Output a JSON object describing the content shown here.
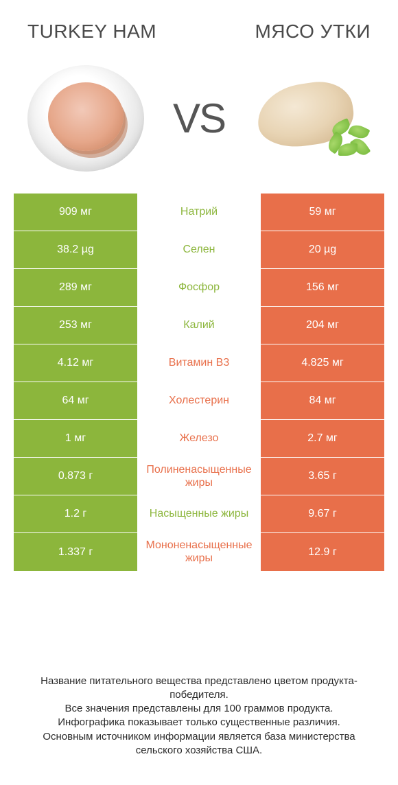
{
  "colors": {
    "green": "#8cb63c",
    "orange": "#e86f4a",
    "mid_bg": "#ffffff"
  },
  "header": {
    "left_title": "TURKEY HAM",
    "right_title": "МЯСО УТКИ",
    "vs": "VS"
  },
  "rows": [
    {
      "label": "Натрий",
      "left": "909 мг",
      "right": "59 мг",
      "winner": "left"
    },
    {
      "label": "Селен",
      "left": "38.2 µg",
      "right": "20 µg",
      "winner": "left"
    },
    {
      "label": "Фосфор",
      "left": "289 мг",
      "right": "156 мг",
      "winner": "left"
    },
    {
      "label": "Калий",
      "left": "253 мг",
      "right": "204 мг",
      "winner": "left"
    },
    {
      "label": "Витамин B3",
      "left": "4.12 мг",
      "right": "4.825 мг",
      "winner": "right"
    },
    {
      "label": "Холестерин",
      "left": "64 мг",
      "right": "84 мг",
      "winner": "right"
    },
    {
      "label": "Железо",
      "left": "1 мг",
      "right": "2.7 мг",
      "winner": "right"
    },
    {
      "label": "Полиненасыщенные жиры",
      "left": "0.873 г",
      "right": "3.65 г",
      "winner": "right"
    },
    {
      "label": "Насыщенные жиры",
      "left": "1.2 г",
      "right": "9.67 г",
      "winner": "left"
    },
    {
      "label": "Мононенасыщенные жиры",
      "left": "1.337 г",
      "right": "12.9 г",
      "winner": "right"
    }
  ],
  "footer": {
    "line1": "Название питательного вещества представлено цветом продукта-победителя.",
    "line2": "Все значения представлены для 100 граммов продукта.",
    "line3": "Инфографика показывает только существенные различия.",
    "line4": "Основным источником информации является база министерства сельского хозяйства США."
  }
}
